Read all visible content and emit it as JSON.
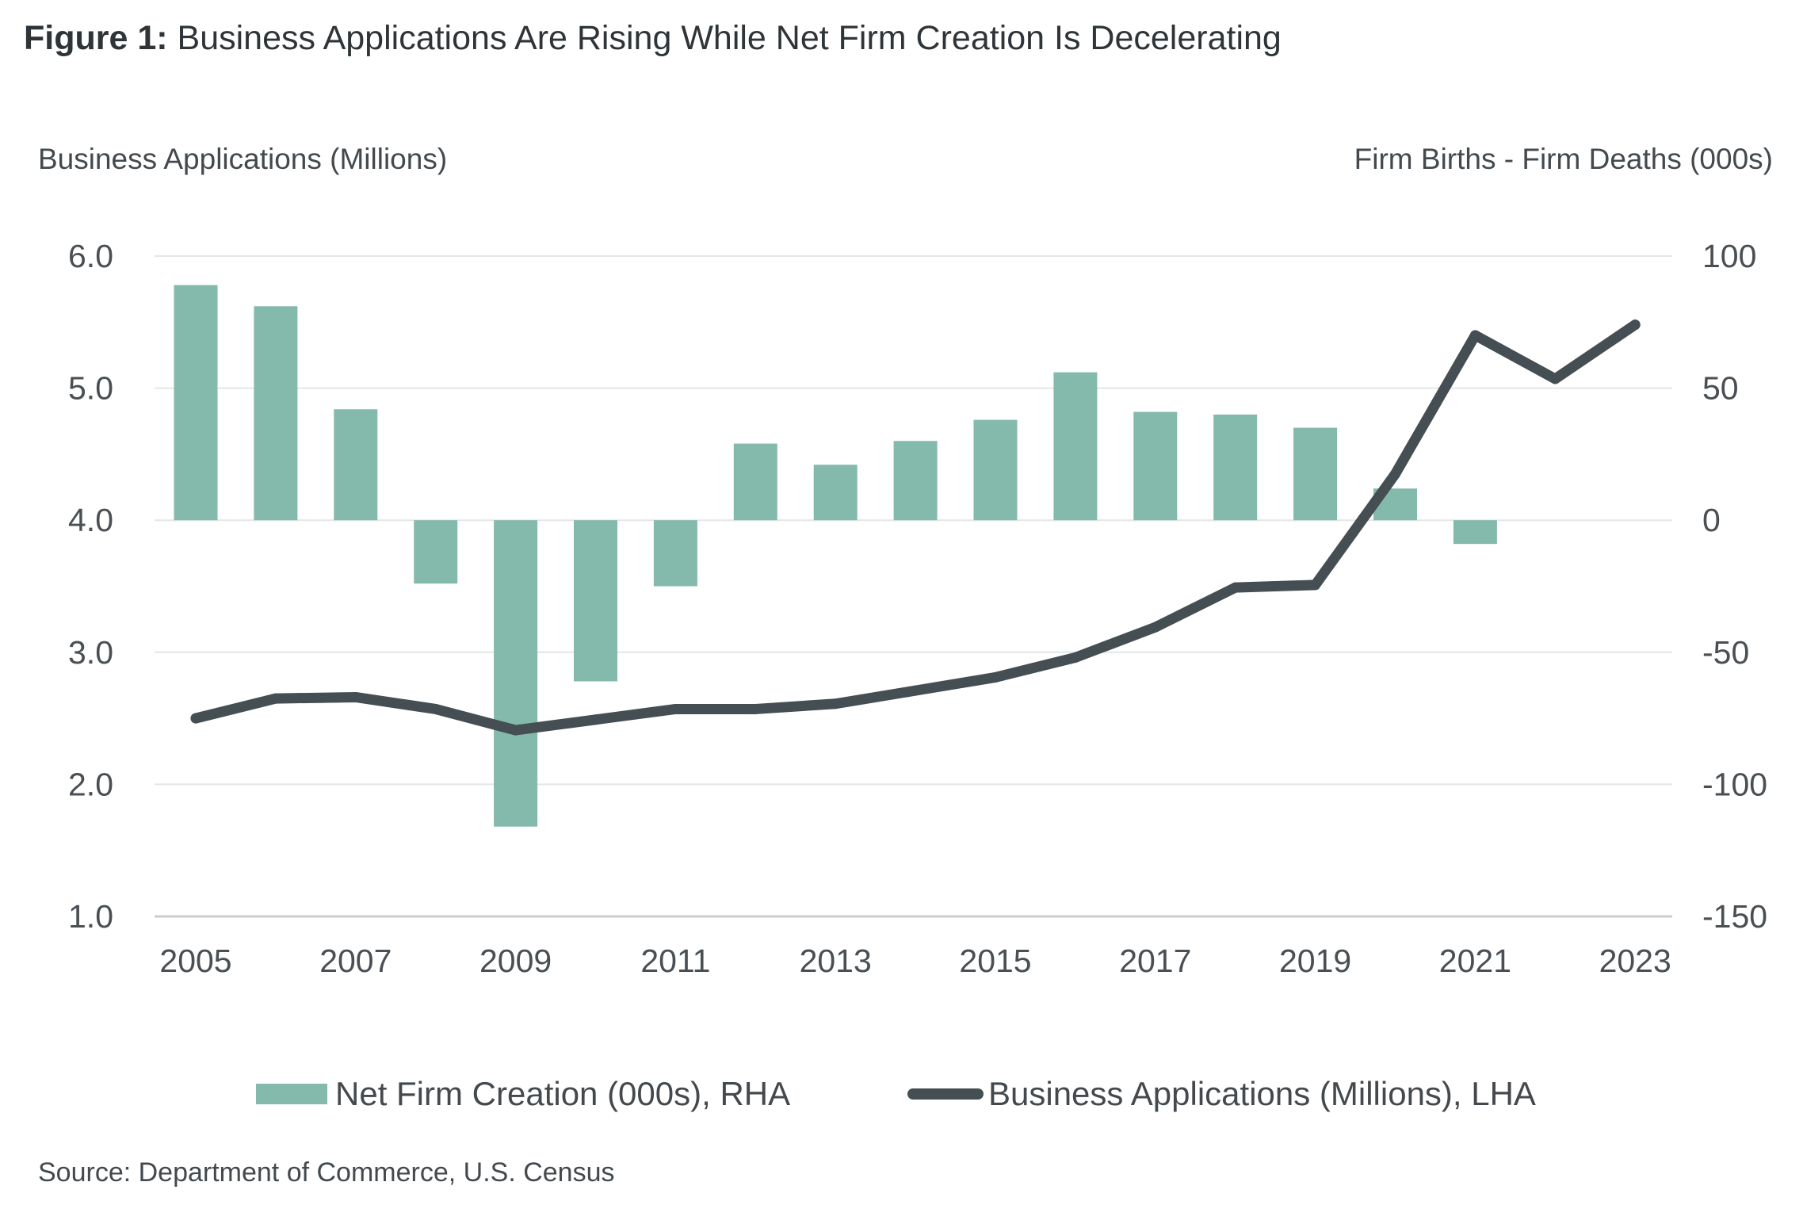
{
  "figure": {
    "label": "Figure 1:",
    "title": "Business Applications Are Rising While Net Firm Creation Is Decelerating",
    "source": "Source: Department of Commerce, U.S. Census"
  },
  "chart_data": {
    "type": "bar+line",
    "left_axis_title": "Business Applications (Millions)",
    "right_axis_title": "Firm Births - Firm Deaths (000s)",
    "years": [
      2005,
      2006,
      2007,
      2008,
      2009,
      2010,
      2011,
      2012,
      2013,
      2014,
      2015,
      2016,
      2017,
      2018,
      2019,
      2020,
      2021,
      2022,
      2023
    ],
    "x_tick_labels": [
      "2005",
      "2007",
      "2009",
      "2011",
      "2013",
      "2015",
      "2017",
      "2019",
      "2021",
      "2023"
    ],
    "left_axis": {
      "min": 1.0,
      "max": 6.0,
      "ticks": [
        "6.0",
        "5.0",
        "4.0",
        "3.0",
        "2.0",
        "1.0"
      ],
      "tick_values": [
        6,
        5,
        4,
        3,
        2,
        1
      ]
    },
    "right_axis": {
      "min": -150,
      "max": 100,
      "ticks": [
        "100",
        "50",
        "0",
        "-50",
        "-100",
        "-150"
      ],
      "tick_values": [
        100,
        50,
        0,
        -50,
        -100,
        -150
      ]
    },
    "grid": true,
    "series": [
      {
        "name": "Net Firm Creation (000s), RHA",
        "type": "bar",
        "axis": "right",
        "color": "#84baab",
        "values": [
          89,
          81,
          42,
          -24,
          -116,
          -61,
          -25,
          29,
          21,
          30,
          38,
          56,
          41,
          40,
          35,
          12,
          -9,
          null,
          null
        ]
      },
      {
        "name": "Business Applications (Millions), LHA",
        "type": "line",
        "axis": "left",
        "color": "#454f53",
        "values": [
          2.5,
          2.65,
          2.66,
          2.57,
          2.41,
          2.49,
          2.57,
          2.57,
          2.61,
          2.71,
          2.81,
          2.96,
          3.19,
          3.49,
          3.51,
          4.35,
          5.4,
          5.07,
          5.48
        ]
      }
    ],
    "legend": {
      "position": "bottom",
      "bar_label": "Net Firm Creation (000s), RHA",
      "line_label": "Business Applications (Millions), LHA"
    }
  }
}
